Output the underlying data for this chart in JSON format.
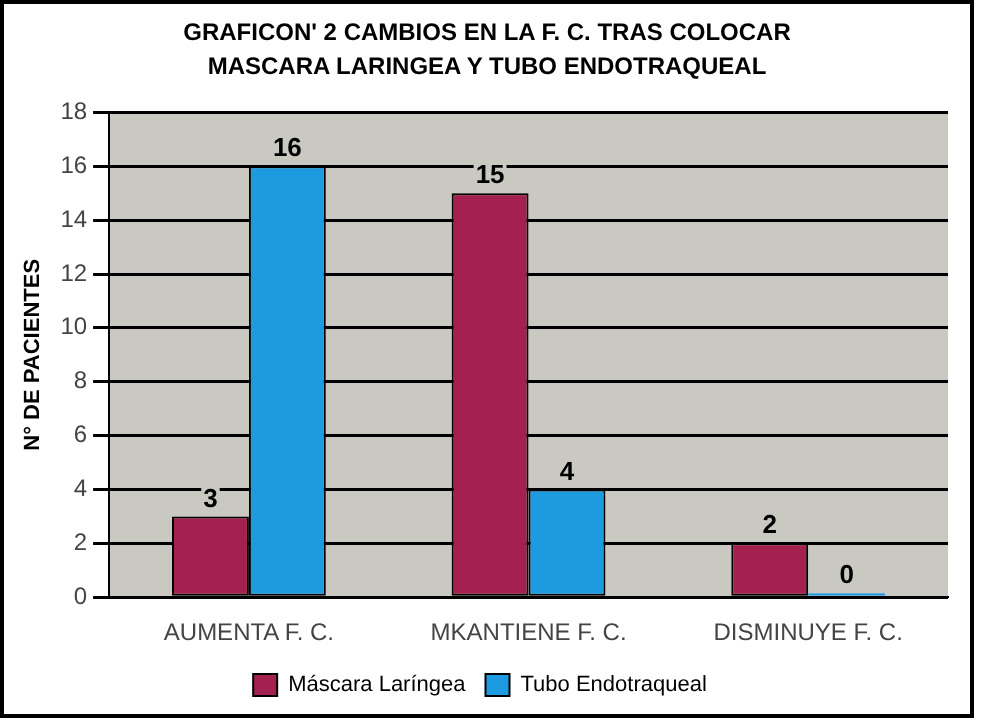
{
  "chart_data": {
    "type": "bar",
    "title": "GRAFICON' 2 CAMBIOS EN LA F. C. TRAS COLOCAR MASCARA LARINGEA Y TUBO ENDOTRAQUEAL",
    "ylabel": "N° DE PACIENTES",
    "categories": [
      "AUMENTA F. C.",
      "MKANTIENE F. C.",
      "DISMINUYE F. C."
    ],
    "series": [
      {
        "name": "Máscara Laríngea",
        "color": "#a3204f",
        "values": [
          3,
          15,
          2
        ]
      },
      {
        "name": "Tubo Endotraqueal",
        "color": "#1e9be0",
        "values": [
          16,
          4,
          0
        ]
      }
    ],
    "ylim": [
      0,
      18
    ],
    "yticks": [
      0,
      2,
      4,
      6,
      8,
      10,
      12,
      14,
      16,
      18
    ],
    "grid": "y",
    "legend": "bottom",
    "data_labels": true
  }
}
